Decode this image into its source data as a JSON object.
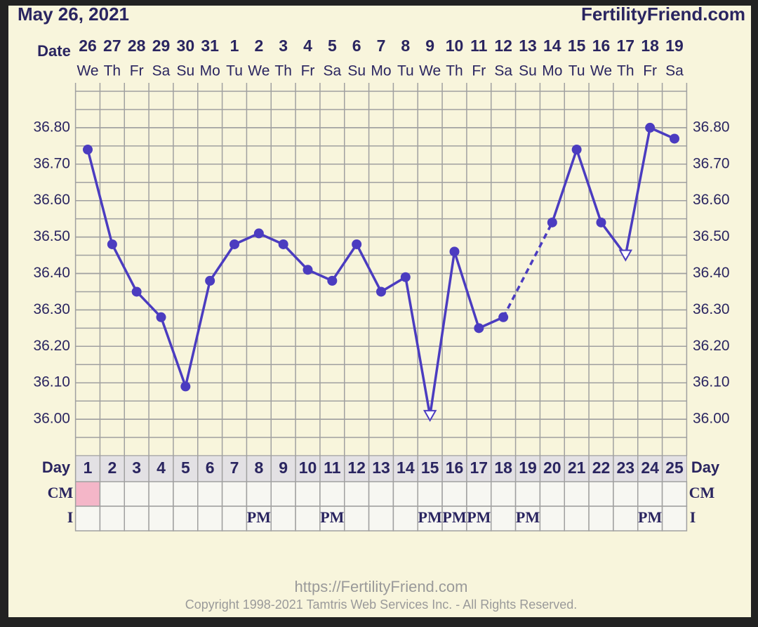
{
  "chart_data": {
    "type": "line",
    "title": "May 26, 2021",
    "site": "FertilityFriend.com",
    "date_label": "Date",
    "dates": [
      26,
      27,
      28,
      29,
      30,
      31,
      1,
      2,
      3,
      4,
      5,
      6,
      7,
      8,
      9,
      10,
      11,
      12,
      13,
      14,
      15,
      16,
      17,
      18,
      19
    ],
    "weekdays": [
      "We",
      "Th",
      "Fr",
      "Sa",
      "Su",
      "Mo",
      "Tu",
      "We",
      "Th",
      "Fr",
      "Sa",
      "Su",
      "Mo",
      "Tu",
      "We",
      "Th",
      "Fr",
      "Sa",
      "Su",
      "Mo",
      "Tu",
      "We",
      "Th",
      "Fr",
      "Sa"
    ],
    "day_label": "Day",
    "categories": [
      1,
      2,
      3,
      4,
      5,
      6,
      7,
      8,
      9,
      10,
      11,
      12,
      13,
      14,
      15,
      16,
      17,
      18,
      19,
      20,
      21,
      22,
      23,
      24,
      25
    ],
    "values": [
      36.74,
      36.48,
      36.35,
      36.28,
      36.09,
      36.38,
      36.48,
      36.51,
      36.48,
      36.41,
      36.38,
      36.48,
      36.35,
      36.39,
      36.01,
      36.46,
      36.25,
      36.28,
      null,
      36.54,
      36.74,
      36.54,
      36.45,
      36.8,
      36.77
    ],
    "markers": [
      "circle",
      "circle",
      "circle",
      "circle",
      "circle",
      "circle",
      "circle",
      "circle",
      "circle",
      "circle",
      "circle",
      "circle",
      "circle",
      "circle",
      "open-triangle",
      "circle",
      "circle",
      "circle",
      null,
      "circle",
      "circle",
      "circle",
      "open-triangle",
      "circle",
      "circle"
    ],
    "color": "#4b3cc0",
    "ylim": [
      35.9,
      36.9
    ],
    "yticks": [
      {
        "value": 36.0,
        "label": "36.00"
      },
      {
        "value": 36.1,
        "label": "36.10"
      },
      {
        "value": 36.2,
        "label": "36.20"
      },
      {
        "value": 36.3,
        "label": "36.30"
      },
      {
        "value": 36.4,
        "label": "36.40"
      },
      {
        "value": 36.5,
        "label": "36.50"
      },
      {
        "value": 36.6,
        "label": "36.60"
      },
      {
        "value": 36.7,
        "label": "36.70"
      },
      {
        "value": 36.8,
        "label": "36.80"
      }
    ],
    "grid": true,
    "cm_label": "CM",
    "cm_colors": [
      "#f4b6c8",
      null,
      null,
      null,
      null,
      null,
      null,
      null,
      null,
      null,
      null,
      null,
      null,
      null,
      null,
      null,
      null,
      null,
      null,
      null,
      null,
      null,
      null,
      null,
      null
    ],
    "i_label": "I",
    "intercourse": [
      null,
      null,
      null,
      null,
      null,
      null,
      null,
      "PM",
      null,
      null,
      "PM",
      null,
      null,
      null,
      "PM",
      "PM",
      "PM",
      null,
      "PM",
      null,
      null,
      null,
      null,
      "PM",
      null
    ],
    "url": "https://FertilityFriend.com",
    "copyright": "Copyright 1998-2021 Tamtris Web Services Inc. - All Rights Reserved."
  }
}
